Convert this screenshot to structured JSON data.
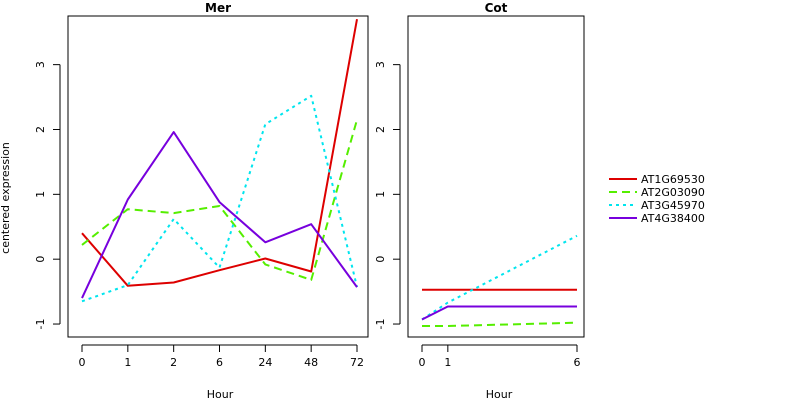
{
  "chart_data": [
    {
      "type": "line",
      "title": "Mer",
      "xlabel": "Hour",
      "ylabel": "centered expression",
      "categories": [
        "0",
        "1",
        "2",
        "6",
        "24",
        "48",
        "72"
      ],
      "ylim": [
        -1.2,
        3.75
      ],
      "yticks": [
        -1,
        0,
        1,
        2,
        3
      ],
      "grid": false,
      "series": [
        {
          "name": "AT1G69530",
          "color": "#dd0000",
          "dash": "solid",
          "values": [
            0.4,
            -0.41,
            -0.36,
            -0.17,
            0.01,
            -0.19,
            3.7
          ]
        },
        {
          "name": "AT2G03090",
          "color": "#55ee00",
          "dash": "dashed",
          "values": [
            0.22,
            0.77,
            0.71,
            0.82,
            -0.08,
            -0.32,
            2.15
          ]
        },
        {
          "name": "AT3G45970",
          "color": "#00e5ee",
          "dash": "dotted",
          "values": [
            -0.65,
            -0.4,
            0.62,
            -0.13,
            2.08,
            2.52,
            -0.43
          ]
        },
        {
          "name": "AT4G38400",
          "color": "#7700dd",
          "dash": "solid",
          "values": [
            -0.6,
            0.92,
            1.96,
            0.88,
            0.26,
            0.54,
            -0.43
          ]
        }
      ]
    },
    {
      "type": "line",
      "title": "Cot",
      "xlabel": "Hour",
      "ylabel": "",
      "categories": [
        "0",
        "1",
        "6"
      ],
      "ylim": [
        -1.2,
        3.75
      ],
      "yticks": [
        -1,
        0,
        1,
        2,
        3
      ],
      "grid": false,
      "series": [
        {
          "name": "AT1G69530",
          "color": "#dd0000",
          "dash": "solid",
          "values": [
            -0.47,
            -0.47,
            -0.47
          ]
        },
        {
          "name": "AT2G03090",
          "color": "#55ee00",
          "dash": "dashed",
          "values": [
            -1.03,
            -1.03,
            -0.98
          ]
        },
        {
          "name": "AT3G45970",
          "color": "#00e5ee",
          "dash": "dotted",
          "values": [
            -0.93,
            -0.67,
            0.36
          ]
        },
        {
          "name": "AT4G38400",
          "color": "#7700dd",
          "dash": "solid",
          "values": [
            -0.93,
            -0.73,
            -0.73
          ]
        }
      ]
    }
  ],
  "legend": {
    "placement": "right",
    "entries": [
      {
        "label": "AT1G69530",
        "color": "#dd0000",
        "dash": "solid"
      },
      {
        "label": "AT2G03090",
        "color": "#55ee00",
        "dash": "dashed"
      },
      {
        "label": "AT3G45970",
        "color": "#00e5ee",
        "dash": "dotted"
      },
      {
        "label": "AT4G38400",
        "color": "#7700dd",
        "dash": "solid"
      }
    ]
  }
}
